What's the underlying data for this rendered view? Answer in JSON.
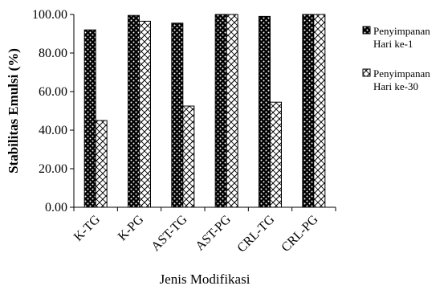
{
  "chart_data": {
    "type": "bar",
    "title": "",
    "xlabel": "Jenis Modifikasi",
    "ylabel": "Stabilitas Emulsi (%)",
    "ylim": [
      0,
      100
    ],
    "yticks": [
      "0.00",
      "20.00",
      "40.00",
      "60.00",
      "80.00",
      "100.00"
    ],
    "grid": false,
    "legend_position": "right",
    "categories": [
      "K-TG",
      "K-PG",
      "AST-TG",
      "AST-PG",
      "CRL-TG",
      "CRL-PG"
    ],
    "series": [
      {
        "name": "Penyimpanan Hari ke-1",
        "legend_lines": [
          "Penyimpanan",
          "Hari ke-1"
        ],
        "pattern": "black-with-white-dots",
        "values": [
          92.0,
          99.5,
          95.5,
          100.0,
          99.0,
          100.0
        ]
      },
      {
        "name": "Penyimpanan Hari ke-30",
        "legend_lines": [
          "Penyimpanan",
          "Hari ke-30"
        ],
        "pattern": "white-with-diagonal-crosshatch",
        "values": [
          45.0,
          96.5,
          52.5,
          100.0,
          54.5,
          100.0
        ]
      }
    ]
  }
}
